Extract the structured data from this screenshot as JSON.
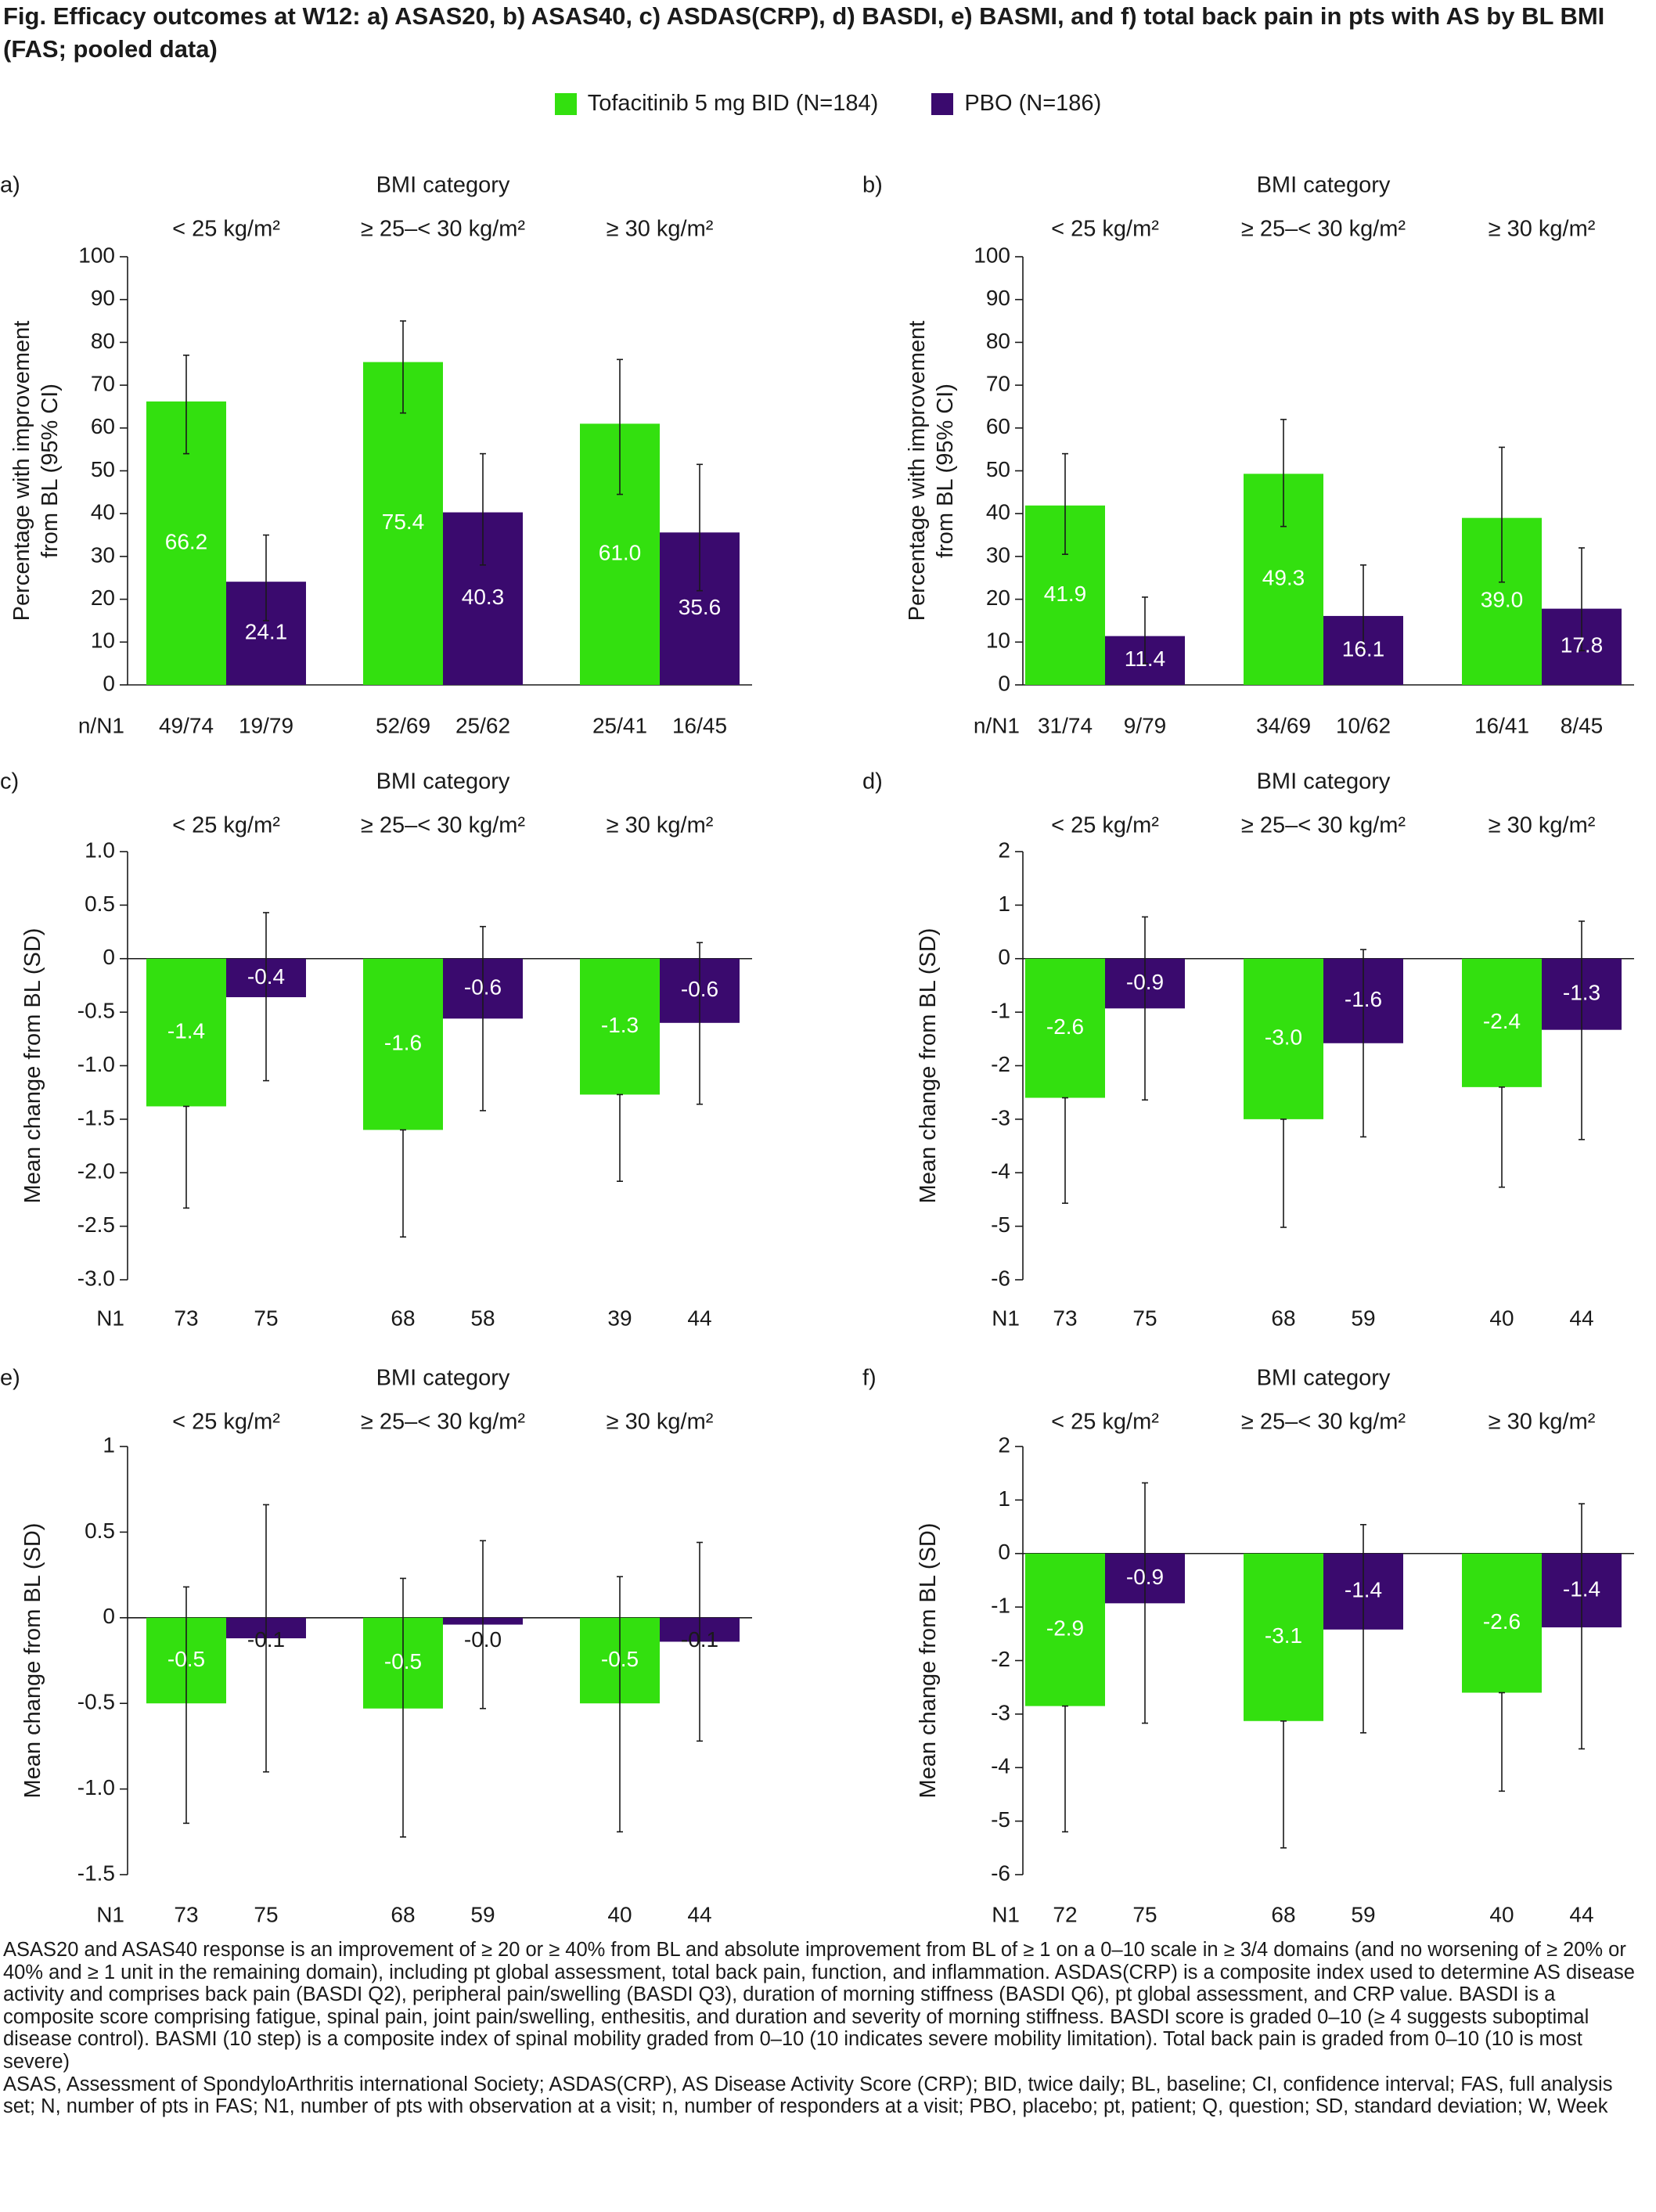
{
  "figure": {
    "title_bold": "Fig.",
    "title_text": "Efficacy outcomes at W12: a) ASAS20, b) ASAS40, c) ASDAS(CRP), d) BASDI, e) BASMI, and f) total back pain in pts with AS by BL BMI (FAS; pooled data)"
  },
  "legend": [
    {
      "label": "Tofacitinib 5 mg BID (N=184)",
      "color": "#33e00f"
    },
    {
      "label": "PBO (N=186)",
      "color": "#3a0a6e"
    }
  ],
  "colors": {
    "tofacitinib": "#33e00f",
    "pbo": "#3a0a6e",
    "label_on_bar": "#ffffff"
  },
  "chart_data": [
    {
      "panel": "a)",
      "type": "bar",
      "group_title": "BMI category",
      "categories": [
        "< 25 kg/m²",
        "≥ 25–< 30 kg/m²",
        "≥ 30 kg/m²"
      ],
      "ylabel": "Percentage with improvement from BL (95% CI)",
      "ylim": [
        0,
        100
      ],
      "yticks": [
        0,
        10,
        20,
        30,
        40,
        50,
        60,
        70,
        80,
        90,
        100
      ],
      "ytick_labels": [
        "0",
        "10",
        "20",
        "30",
        "40",
        "50",
        "60",
        "70",
        "80",
        "90",
        "100"
      ],
      "count_row_label": "n/N1",
      "series": [
        {
          "name": "Tofacitinib 5 mg BID (N=184)",
          "values": [
            66.2,
            75.4,
            61.0
          ],
          "value_labels": [
            "66.2",
            "75.4",
            "61.0"
          ],
          "ci_low": [
            54,
            63.5,
            44.5
          ],
          "ci_high": [
            77,
            85,
            76
          ],
          "counts": [
            "49/74",
            "52/69",
            "25/41"
          ]
        },
        {
          "name": "PBO (N=186)",
          "values": [
            24.1,
            40.3,
            35.6
          ],
          "value_labels": [
            "24.1",
            "40.3",
            "35.6"
          ],
          "ci_low": [
            15,
            28,
            22
          ],
          "ci_high": [
            35,
            54,
            51.5
          ],
          "counts": [
            "19/79",
            "25/62",
            "16/45"
          ]
        }
      ]
    },
    {
      "panel": "b)",
      "type": "bar",
      "group_title": "BMI category",
      "categories": [
        "< 25 kg/m²",
        "≥ 25–< 30 kg/m²",
        "≥ 30 kg/m²"
      ],
      "ylabel": "Percentage with improvement from BL (95% CI)",
      "ylim": [
        0,
        100
      ],
      "yticks": [
        0,
        10,
        20,
        30,
        40,
        50,
        60,
        70,
        80,
        90,
        100
      ],
      "ytick_labels": [
        "0",
        "10",
        "20",
        "30",
        "40",
        "50",
        "60",
        "70",
        "80",
        "90",
        "100"
      ],
      "count_row_label": "n/N1",
      "series": [
        {
          "name": "Tofacitinib 5 mg BID (N=184)",
          "values": [
            41.9,
            49.3,
            39.0
          ],
          "value_labels": [
            "41.9",
            "49.3",
            "39.0"
          ],
          "ci_low": [
            30.5,
            37,
            24
          ],
          "ci_high": [
            54,
            62,
            55.5
          ],
          "counts": [
            "31/74",
            "34/69",
            "16/41"
          ]
        },
        {
          "name": "PBO (N=186)",
          "values": [
            11.4,
            16.1,
            17.8
          ],
          "value_labels": [
            "11.4",
            "16.1",
            "17.8"
          ],
          "ci_low": [
            5,
            8,
            8
          ],
          "ci_high": [
            20.5,
            28,
            32
          ],
          "counts": [
            "9/79",
            "10/62",
            "8/45"
          ]
        }
      ]
    },
    {
      "panel": "c)",
      "type": "bar",
      "group_title": "BMI category",
      "categories": [
        "< 25 kg/m²",
        "≥ 25–< 30 kg/m²",
        "≥ 30 kg/m²"
      ],
      "ylabel": "Mean change from BL (SD)",
      "ylim": [
        -3.0,
        1.0
      ],
      "yticks": [
        1.0,
        0.5,
        0,
        -0.5,
        -1.0,
        -1.5,
        -2.0,
        -2.5,
        -3.0
      ],
      "ytick_labels": [
        "1.0",
        "0.5",
        "0",
        "-0.5",
        "-1.0",
        "-1.5",
        "-2.0",
        "-2.5",
        "-3.0"
      ],
      "count_row_label": "N1",
      "series": [
        {
          "name": "Tofacitinib 5 mg BID (N=184)",
          "values": [
            -1.38,
            -1.6,
            -1.27
          ],
          "value_labels": [
            "-1.4",
            "-1.6",
            "-1.3"
          ],
          "ci_low": [
            -2.33,
            -2.6,
            -2.08
          ],
          "ci_high": [
            -1.38,
            -1.6,
            -1.27
          ],
          "counts": [
            "73",
            "68",
            "39"
          ]
        },
        {
          "name": "PBO (N=186)",
          "values": [
            -0.36,
            -0.56,
            -0.6
          ],
          "value_labels": [
            "-0.4",
            "-0.6",
            "-0.6"
          ],
          "ci_low": [
            -1.14,
            -1.42,
            -1.36
          ],
          "ci_high": [
            0.43,
            0.3,
            0.15
          ],
          "counts": [
            "75",
            "58",
            "44"
          ]
        }
      ]
    },
    {
      "panel": "d)",
      "type": "bar",
      "group_title": "BMI category",
      "categories": [
        "< 25 kg/m²",
        "≥ 25–< 30 kg/m²",
        "≥ 30 kg/m²"
      ],
      "ylabel": "Mean change from BL (SD)",
      "ylim": [
        -6,
        2
      ],
      "yticks": [
        2,
        1,
        0,
        -1,
        -2,
        -3,
        -4,
        -5,
        -6
      ],
      "ytick_labels": [
        "2",
        "1",
        "0",
        "-1",
        "-2",
        "-3",
        "-4",
        "-5",
        "-6"
      ],
      "count_row_label": "N1",
      "series": [
        {
          "name": "Tofacitinib 5 mg BID (N=184)",
          "values": [
            -2.6,
            -3.0,
            -2.4
          ],
          "value_labels": [
            "-2.6",
            "-3.0",
            "-2.4"
          ],
          "ci_low": [
            -4.57,
            -5.02,
            -4.27
          ],
          "ci_high": [
            -2.6,
            -3.0,
            -2.4
          ],
          "counts": [
            "73",
            "68",
            "40"
          ]
        },
        {
          "name": "PBO (N=186)",
          "values": [
            -0.93,
            -1.58,
            -1.33
          ],
          "value_labels": [
            "-0.9",
            "-1.6",
            "-1.3"
          ],
          "ci_low": [
            -2.64,
            -3.33,
            -3.38
          ],
          "ci_high": [
            0.78,
            0.17,
            0.7
          ],
          "counts": [
            "75",
            "59",
            "44"
          ]
        }
      ]
    },
    {
      "panel": "e)",
      "type": "bar",
      "group_title": "BMI category",
      "categories": [
        "< 25 kg/m²",
        "≥ 25–< 30 kg/m²",
        "≥ 30 kg/m²"
      ],
      "ylabel": "Mean change from BL (SD)",
      "ylim": [
        -1.5,
        1.0
      ],
      "yticks": [
        1,
        0.5,
        0,
        -0.5,
        -1.0,
        -1.5
      ],
      "ytick_labels": [
        "1",
        "0.5",
        "0",
        "-0.5",
        "-1.0",
        "-1.5"
      ],
      "count_row_label": "N1",
      "series": [
        {
          "name": "Tofacitinib 5 mg BID (N=184)",
          "values": [
            -0.5,
            -0.53,
            -0.5
          ],
          "value_labels": [
            "-0.5",
            "-0.5",
            "-0.5"
          ],
          "ci_low": [
            -1.2,
            -1.28,
            -1.25
          ],
          "ci_high": [
            0.18,
            0.23,
            0.24
          ],
          "counts": [
            "73",
            "68",
            "40"
          ]
        },
        {
          "name": "PBO (N=186)",
          "values": [
            -0.12,
            -0.04,
            -0.14
          ],
          "value_labels": [
            "-0.1",
            "-0.0",
            "-0.1"
          ],
          "ci_low": [
            -0.9,
            -0.53,
            -0.72
          ],
          "ci_high": [
            0.66,
            0.45,
            0.44
          ],
          "counts": [
            "75",
            "59",
            "44"
          ]
        }
      ]
    },
    {
      "panel": "f)",
      "type": "bar",
      "group_title": "BMI category",
      "categories": [
        "< 25 kg/m²",
        "≥ 25–< 30 kg/m²",
        "≥ 30 kg/m²"
      ],
      "ylabel": "Mean change from BL (SD)",
      "ylim": [
        -6,
        2
      ],
      "yticks": [
        2,
        1,
        0,
        -1,
        -2,
        -3,
        -4,
        -5,
        -6
      ],
      "ytick_labels": [
        "2",
        "1",
        "0",
        "-1",
        "-2",
        "-3",
        "-4",
        "-5",
        "-6"
      ],
      "count_row_label": "N1",
      "series": [
        {
          "name": "Tofacitinib 5 mg BID (N=184)",
          "values": [
            -2.85,
            -3.13,
            -2.6
          ],
          "value_labels": [
            "-2.9",
            "-3.1",
            "-2.6"
          ],
          "ci_low": [
            -5.2,
            -5.5,
            -4.44
          ],
          "ci_high": [
            -2.85,
            -3.13,
            -2.6
          ],
          "counts": [
            "72",
            "68",
            "40"
          ]
        },
        {
          "name": "PBO (N=186)",
          "values": [
            -0.93,
            -1.42,
            -1.38
          ],
          "value_labels": [
            "-0.9",
            "-1.4",
            "-1.4"
          ],
          "ci_low": [
            -3.17,
            -3.35,
            -3.65
          ],
          "ci_high": [
            1.32,
            0.54,
            0.93
          ],
          "counts": [
            "75",
            "59",
            "44"
          ]
        }
      ]
    }
  ],
  "footnote": [
    "ASAS20 and ASAS40 response is an improvement of ≥ 20 or ≥ 40% from BL and absolute improvement from BL of ≥ 1 on a 0–10 scale in ≥ 3/4 domains (and no worsening of ≥ 20% or 40% and ≥ 1 unit in the remaining domain), including pt global assessment, total back pain, function, and inflammation. ASDAS(CRP) is a composite index used to determine AS disease activity and comprises back pain (BASDI Q2), peripheral pain/swelling (BASDI Q3), duration of morning stiffness (BASDI Q6), pt global assessment, and CRP value. BASDI is a composite score comprising fatigue, spinal pain, joint pain/swelling, enthesitis, and duration and severity of morning stiffness. BASDI score is graded 0–10 (≥ 4 suggests suboptimal disease control). BASMI (10 step) is a composite index of spinal mobility graded from 0–10 (10 indicates severe mobility limitation). Total back pain is graded from 0–10 (10 is most severe)",
    "ASAS, Assessment of SpondyloArthritis international Society; ASDAS(CRP), AS Disease Activity Score (CRP); BID, twice daily; BL, baseline; CI, confidence interval; FAS, full analysis set; N, number of pts in FAS; N1, number of pts with observation at a visit; n, number of responders at a visit; PBO, placebo; pt, patient; Q, question; SD, standard deviation; W, Week"
  ]
}
